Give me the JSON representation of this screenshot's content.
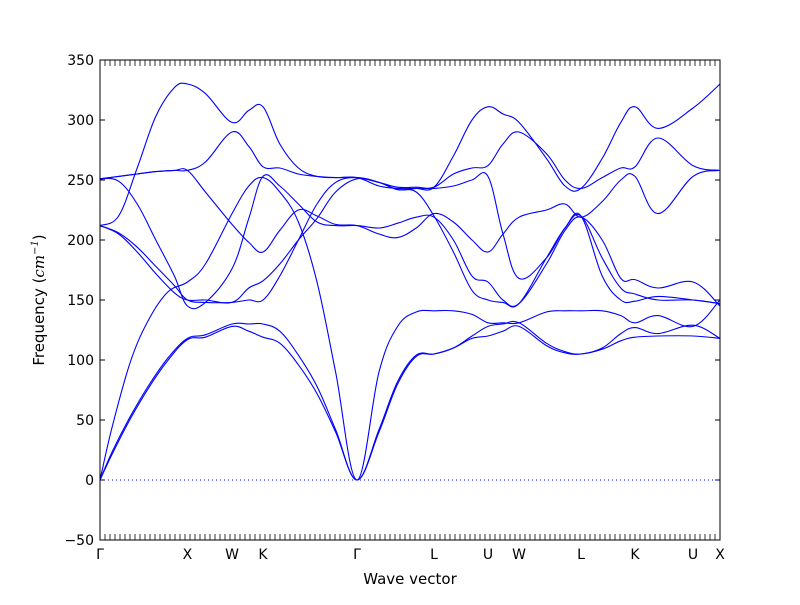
{
  "chart_data": {
    "type": "line",
    "xlabel": "Wave vector",
    "ylabel_text": "Frequency (",
    "ylabel_unit": "cm",
    "ylabel_exp": "−1",
    "ylabel_close": ")",
    "ylim": [
      -50,
      350
    ],
    "yticks": [
      -50,
      0,
      50,
      100,
      150,
      200,
      250,
      300,
      350
    ],
    "ytick_labels": [
      "−50",
      "0",
      "50",
      "100",
      "150",
      "200",
      "250",
      "300",
      "350"
    ],
    "path_points": [
      {
        "label": "Γ",
        "x": 0.0
      },
      {
        "label": "X",
        "x": 0.1411
      },
      {
        "label": "W",
        "x": 0.2129
      },
      {
        "label": "K",
        "x": 0.2629
      },
      {
        "label": "Γ",
        "x": 0.4145
      },
      {
        "label": "L",
        "x": 0.5387
      },
      {
        "label": "U",
        "x": 0.6258
      },
      {
        "label": "W",
        "x": 0.6758
      },
      {
        "label": "L",
        "x": 0.7758
      },
      {
        "label": "K",
        "x": 0.8629
      },
      {
        "label": "U",
        "x": 0.9565
      },
      {
        "label": "X",
        "x": 1.0
      }
    ],
    "series_color": "#0000ff",
    "zero_line": {
      "y": 0,
      "style": "dotted",
      "color": "#0000ff"
    },
    "bands": [
      [
        [
          0,
          0
        ],
        [
          0.02,
          22
        ],
        [
          0.05,
          52
        ],
        [
          0.08,
          78
        ],
        [
          0.11,
          100
        ],
        [
          0.1411,
          117
        ],
        [
          0.17,
          119
        ],
        [
          0.2129,
          128
        ],
        [
          0.24,
          124
        ],
        [
          0.2629,
          119
        ],
        [
          0.29,
          114
        ],
        [
          0.32,
          96
        ],
        [
          0.35,
          72
        ],
        [
          0.38,
          40
        ],
        [
          0.4145,
          0
        ],
        [
          0.45,
          40
        ],
        [
          0.48,
          80
        ],
        [
          0.51,
          103
        ],
        [
          0.5387,
          105
        ],
        [
          0.57,
          110
        ],
        [
          0.6,
          118
        ],
        [
          0.6258,
          120
        ],
        [
          0.65,
          124
        ],
        [
          0.6758,
          128
        ],
        [
          0.72,
          112
        ],
        [
          0.75,
          106
        ],
        [
          0.7758,
          105
        ],
        [
          0.81,
          109
        ],
        [
          0.84,
          116
        ],
        [
          0.8629,
          119
        ],
        [
          0.9,
          120
        ],
        [
          0.9565,
          120
        ],
        [
          1.0,
          118
        ]
      ],
      [
        [
          0,
          0
        ],
        [
          0.02,
          24
        ],
        [
          0.05,
          54
        ],
        [
          0.08,
          80
        ],
        [
          0.11,
          102
        ],
        [
          0.1411,
          118
        ],
        [
          0.17,
          121
        ],
        [
          0.2129,
          130
        ],
        [
          0.24,
          130
        ],
        [
          0.2629,
          130
        ],
        [
          0.29,
          124
        ],
        [
          0.32,
          104
        ],
        [
          0.35,
          78
        ],
        [
          0.38,
          42
        ],
        [
          0.4145,
          0
        ],
        [
          0.45,
          42
        ],
        [
          0.48,
          82
        ],
        [
          0.51,
          104
        ],
        [
          0.5387,
          105
        ],
        [
          0.57,
          110
        ],
        [
          0.6,
          120
        ],
        [
          0.6258,
          128
        ],
        [
          0.65,
          130
        ],
        [
          0.6758,
          131
        ],
        [
          0.72,
          114
        ],
        [
          0.75,
          107
        ],
        [
          0.7758,
          105
        ],
        [
          0.81,
          110
        ],
        [
          0.84,
          122
        ],
        [
          0.8629,
          127
        ],
        [
          0.9,
          122
        ],
        [
          0.9565,
          129
        ],
        [
          1.0,
          118
        ]
      ],
      [
        [
          0,
          0
        ],
        [
          0.02,
          45
        ],
        [
          0.05,
          100
        ],
        [
          0.08,
          135
        ],
        [
          0.11,
          157
        ],
        [
          0.1411,
          165
        ],
        [
          0.17,
          180
        ],
        [
          0.2129,
          222
        ],
        [
          0.24,
          245
        ],
        [
          0.2629,
          252
        ],
        [
          0.29,
          240
        ],
        [
          0.32,
          215
        ],
        [
          0.35,
          165
        ],
        [
          0.38,
          90
        ],
        [
          0.4145,
          0
        ],
        [
          0.45,
          90
        ],
        [
          0.48,
          128
        ],
        [
          0.51,
          140
        ],
        [
          0.5387,
          141
        ],
        [
          0.57,
          141
        ],
        [
          0.6,
          138
        ],
        [
          0.6258,
          131
        ],
        [
          0.65,
          131
        ],
        [
          0.6758,
          131
        ],
        [
          0.72,
          140
        ],
        [
          0.75,
          141
        ],
        [
          0.7758,
          141
        ],
        [
          0.81,
          141
        ],
        [
          0.84,
          137
        ],
        [
          0.8629,
          131
        ],
        [
          0.9,
          137
        ],
        [
          0.9565,
          128
        ],
        [
          1.0,
          150
        ]
      ],
      [
        [
          0,
          212
        ],
        [
          0.03,
          205
        ],
        [
          0.06,
          190
        ],
        [
          0.09,
          172
        ],
        [
          0.12,
          156
        ],
        [
          0.1411,
          150
        ],
        [
          0.17,
          150
        ],
        [
          0.2129,
          148
        ],
        [
          0.24,
          160
        ],
        [
          0.2629,
          166
        ],
        [
          0.29,
          180
        ],
        [
          0.32,
          200
        ],
        [
          0.35,
          218
        ],
        [
          0.38,
          240
        ],
        [
          0.4145,
          251
        ],
        [
          0.45,
          248
        ],
        [
          0.48,
          242
        ],
        [
          0.51,
          243
        ],
        [
          0.5387,
          243
        ],
        [
          0.57,
          245
        ],
        [
          0.6,
          250
        ],
        [
          0.6258,
          253
        ],
        [
          0.65,
          205
        ],
        [
          0.6758,
          168
        ],
        [
          0.72,
          185
        ],
        [
          0.75,
          210
        ],
        [
          0.7758,
          220
        ],
        [
          0.81,
          170
        ],
        [
          0.84,
          150
        ],
        [
          0.8629,
          149
        ],
        [
          0.9,
          153
        ],
        [
          0.9565,
          150
        ],
        [
          1.0,
          147
        ]
      ],
      [
        [
          0,
          212
        ],
        [
          0.03,
          206
        ],
        [
          0.06,
          194
        ],
        [
          0.09,
          178
        ],
        [
          0.12,
          162
        ],
        [
          0.1411,
          150
        ],
        [
          0.17,
          148
        ],
        [
          0.2129,
          148
        ],
        [
          0.24,
          150
        ],
        [
          0.2629,
          150
        ],
        [
          0.29,
          170
        ],
        [
          0.32,
          200
        ],
        [
          0.35,
          230
        ],
        [
          0.38,
          248
        ],
        [
          0.4145,
          252
        ],
        [
          0.45,
          248
        ],
        [
          0.48,
          242
        ],
        [
          0.51,
          240
        ],
        [
          0.5387,
          220
        ],
        [
          0.57,
          190
        ],
        [
          0.6,
          158
        ],
        [
          0.6258,
          150
        ],
        [
          0.65,
          148
        ],
        [
          0.6758,
          147
        ],
        [
          0.72,
          185
        ],
        [
          0.75,
          210
        ],
        [
          0.7758,
          220
        ],
        [
          0.81,
          185
        ],
        [
          0.84,
          160
        ],
        [
          0.8629,
          155
        ],
        [
          0.9,
          150
        ],
        [
          0.9565,
          150
        ],
        [
          1.0,
          147
        ]
      ],
      [
        [
          0,
          251
        ],
        [
          0.03,
          249
        ],
        [
          0.06,
          230
        ],
        [
          0.09,
          200
        ],
        [
          0.12,
          170
        ],
        [
          0.1411,
          145
        ],
        [
          0.17,
          148
        ],
        [
          0.2129,
          176
        ],
        [
          0.24,
          218
        ],
        [
          0.2629,
          253
        ],
        [
          0.29,
          245
        ],
        [
          0.32,
          230
        ],
        [
          0.35,
          215
        ],
        [
          0.38,
          212
        ],
        [
          0.4145,
          212
        ],
        [
          0.45,
          210
        ],
        [
          0.48,
          214
        ],
        [
          0.51,
          219
        ],
        [
          0.5387,
          219
        ],
        [
          0.57,
          200
        ],
        [
          0.6,
          170
        ],
        [
          0.6258,
          165
        ],
        [
          0.65,
          150
        ],
        [
          0.6758,
          147
        ],
        [
          0.72,
          180
        ],
        [
          0.75,
          208
        ],
        [
          0.7758,
          219
        ],
        [
          0.81,
          200
        ],
        [
          0.84,
          168
        ],
        [
          0.8629,
          167
        ],
        [
          0.9,
          160
        ],
        [
          0.9565,
          165
        ],
        [
          1.0,
          145
        ]
      ],
      [
        [
          0,
          212
        ],
        [
          0.03,
          220
        ],
        [
          0.06,
          260
        ],
        [
          0.09,
          303
        ],
        [
          0.12,
          327
        ],
        [
          0.1411,
          330
        ],
        [
          0.17,
          322
        ],
        [
          0.2129,
          298
        ],
        [
          0.24,
          308
        ],
        [
          0.2629,
          311
        ],
        [
          0.29,
          280
        ],
        [
          0.32,
          260
        ],
        [
          0.35,
          253
        ],
        [
          0.38,
          252
        ],
        [
          0.4145,
          252
        ],
        [
          0.45,
          245
        ],
        [
          0.48,
          243
        ],
        [
          0.51,
          243
        ],
        [
          0.5387,
          244
        ],
        [
          0.57,
          270
        ],
        [
          0.6,
          300
        ],
        [
          0.6258,
          311
        ],
        [
          0.65,
          305
        ],
        [
          0.6758,
          298
        ],
        [
          0.72,
          268
        ],
        [
          0.75,
          245
        ],
        [
          0.7758,
          243
        ],
        [
          0.81,
          268
        ],
        [
          0.84,
          298
        ],
        [
          0.8629,
          311
        ],
        [
          0.9,
          293
        ],
        [
          0.9565,
          310
        ],
        [
          1.0,
          330
        ]
      ],
      [
        [
          0,
          251
        ],
        [
          0.03,
          253
        ],
        [
          0.06,
          255
        ],
        [
          0.09,
          257
        ],
        [
          0.12,
          258
        ],
        [
          0.1411,
          258
        ],
        [
          0.17,
          265
        ],
        [
          0.2129,
          290
        ],
        [
          0.24,
          278
        ],
        [
          0.2629,
          261
        ],
        [
          0.29,
          260
        ],
        [
          0.32,
          255
        ],
        [
          0.35,
          253
        ],
        [
          0.38,
          252
        ],
        [
          0.4145,
          252
        ],
        [
          0.45,
          248
        ],
        [
          0.48,
          244
        ],
        [
          0.51,
          244
        ],
        [
          0.5387,
          244
        ],
        [
          0.57,
          255
        ],
        [
          0.6,
          260
        ],
        [
          0.6258,
          262
        ],
        [
          0.65,
          280
        ],
        [
          0.6758,
          290
        ],
        [
          0.72,
          272
        ],
        [
          0.75,
          250
        ],
        [
          0.7758,
          243
        ],
        [
          0.81,
          252
        ],
        [
          0.84,
          260
        ],
        [
          0.8629,
          261
        ],
        [
          0.9,
          285
        ],
        [
          0.9565,
          262
        ],
        [
          1.0,
          258
        ]
      ],
      [
        [
          0,
          251
        ],
        [
          0.03,
          253
        ],
        [
          0.06,
          255
        ],
        [
          0.09,
          257
        ],
        [
          0.12,
          258
        ],
        [
          0.1411,
          258
        ],
        [
          0.17,
          240
        ],
        [
          0.2129,
          213
        ],
        [
          0.24,
          198
        ],
        [
          0.2629,
          190
        ],
        [
          0.29,
          208
        ],
        [
          0.32,
          225
        ],
        [
          0.35,
          220
        ],
        [
          0.38,
          213
        ],
        [
          0.4145,
          212
        ],
        [
          0.45,
          205
        ],
        [
          0.48,
          202
        ],
        [
          0.51,
          210
        ],
        [
          0.5387,
          222
        ],
        [
          0.57,
          215
        ],
        [
          0.6,
          200
        ],
        [
          0.6258,
          190
        ],
        [
          0.65,
          205
        ],
        [
          0.6758,
          219
        ],
        [
          0.72,
          225
        ],
        [
          0.75,
          230
        ],
        [
          0.7758,
          219
        ],
        [
          0.81,
          232
        ],
        [
          0.84,
          250
        ],
        [
          0.8629,
          253
        ],
        [
          0.9,
          222
        ],
        [
          0.9565,
          253
        ],
        [
          1.0,
          258
        ]
      ]
    ]
  }
}
